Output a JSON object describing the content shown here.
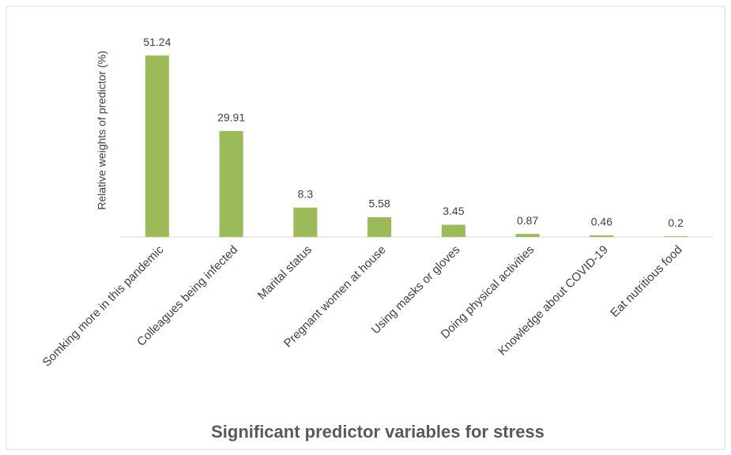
{
  "chart_data": {
    "type": "bar",
    "x_label": "Significant predictor variables for stress",
    "y_label": "Relative weights of predictor (%)",
    "categories": [
      "Somking more in this pandemic",
      "Colleagues being infected",
      "Marital status",
      "Pregnant women at house",
      "Using masks or gloves",
      "Doing physical activities",
      "Knowledge about COVID-19",
      "Eat nutritious food"
    ],
    "values": [
      51.24,
      29.91,
      8.3,
      5.58,
      3.45,
      0.87,
      0.46,
      0.2
    ],
    "color": "#9bbb59",
    "ylim": [
      0,
      60
    ]
  }
}
